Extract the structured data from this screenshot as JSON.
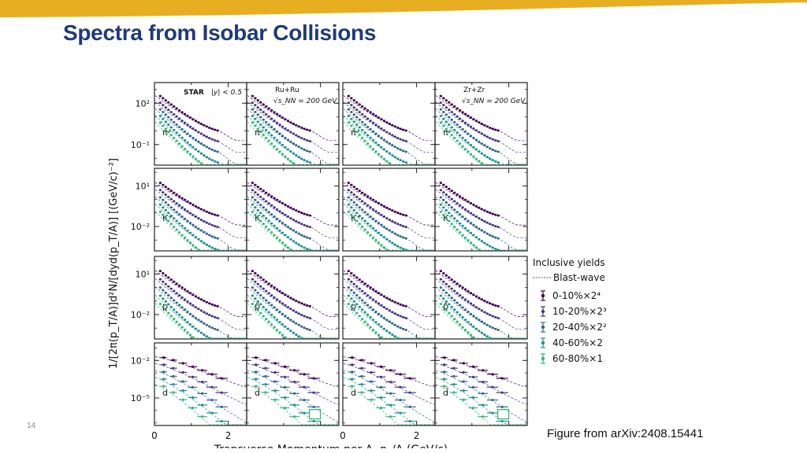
{
  "slide": {
    "title": "Spectra from Isobar Collisions",
    "page_number": "14",
    "source_note": "Figure from arXiv:2408.15441",
    "banner_color": "#e7ae22"
  },
  "chart_data": {
    "type": "scatter",
    "xlabel": "Transverse Momentum per A, p",
    "xlabel_sub": "T",
    "xlabel_tail": "/A (GeV/c)",
    "ylabel": "1/[2π(p_T/A)]d²N/[dyd(p_T/A)] [(GeV/c)⁻²]",
    "x_ticks": [
      "0",
      "2"
    ],
    "xlim": [
      0,
      2.5
    ],
    "y_log": true,
    "grid": false,
    "annotations": {
      "experiment": "STAR",
      "rapidity": "|y| < 0.5",
      "systems": [
        {
          "name": "Ru+Ru",
          "energy": "√s_NN = 200 GeV"
        },
        {
          "name": "Zr+Zr",
          "energy": "√s_NN = 200 GeV"
        }
      ]
    },
    "rows": [
      {
        "particles": [
          "π⁺",
          "π⁻",
          "π⁺",
          "π⁻"
        ],
        "y_ticks": [
          "10²",
          "10⁻¹"
        ],
        "ylim": [
          -2.5,
          3.5
        ],
        "tick_exp": [
          2,
          -1
        ],
        "p_max": 1.75,
        "start": [
          2.6,
          2.1
        ],
        "end": [
          0.0,
          -1.7
        ]
      },
      {
        "particles": [
          "K⁺",
          "K⁻",
          "K⁺",
          "K⁻"
        ],
        "y_ticks": [
          "10¹",
          "10⁻²"
        ],
        "ylim": [
          -3.8,
          2.3
        ],
        "tick_exp": [
          1,
          -2
        ],
        "p_max": 1.75,
        "start": [
          1.3,
          0.6
        ],
        "end": [
          -1.2,
          -3.2
        ]
      },
      {
        "particles": [
          "p",
          "p̄",
          "p",
          "p̄"
        ],
        "y_ticks": [
          "10¹",
          "10⁻²"
        ],
        "ylim": [
          -3.8,
          2.3
        ],
        "tick_exp": [
          1,
          -2
        ],
        "p_max": 1.75,
        "start": [
          1.3,
          0.3
        ],
        "end": [
          -1.4,
          -3.5
        ]
      },
      {
        "particles": [
          "d",
          "d̄",
          "d",
          "d̄"
        ],
        "y_ticks": [
          "10⁻²",
          "10⁻⁵"
        ],
        "ylim": [
          -7.2,
          -0.6
        ],
        "tick_exp": [
          -2,
          -5
        ],
        "p_max": 1.95,
        "start": [
          -1.7,
          -2.5
        ],
        "end": [
          -3.6,
          -7.0
        ]
      }
    ],
    "legend": {
      "title": "Inclusive yields",
      "model_label": "Blast-wave",
      "entries": [
        {
          "label": "0-10%×2⁴",
          "color": "#440154"
        },
        {
          "label": "10-20%×2³",
          "color": "#443983"
        },
        {
          "label": "20-40%×2²",
          "color": "#31688e"
        },
        {
          "label": "40-60%×2",
          "color": "#21918c"
        },
        {
          "label": "60-80%×1",
          "color": "#35b779"
        }
      ],
      "placement": "right"
    }
  }
}
